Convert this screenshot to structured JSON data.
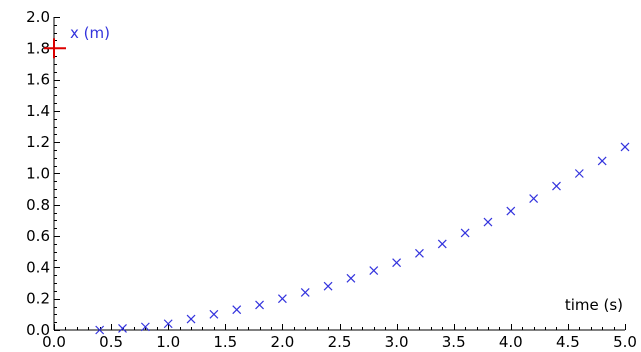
{
  "chart_data": {
    "type": "scatter",
    "title": "",
    "xlabel": "time (s)",
    "ylabel": "x (m)",
    "xlim": [
      0.0,
      5.0
    ],
    "ylim": [
      0.0,
      2.0
    ],
    "x_ticks": [
      0.0,
      0.5,
      1.0,
      1.5,
      2.0,
      2.5,
      3.0,
      3.5,
      4.0,
      4.5,
      5.0
    ],
    "x_tick_labels": [
      "0.0",
      "0.5",
      "1.0",
      "1.5",
      "2.0",
      "2.5",
      "3.0",
      "3.5",
      "4.0",
      "4.5",
      "5.0"
    ],
    "y_ticks": [
      0.0,
      0.2,
      0.4,
      0.6,
      0.8,
      1.0,
      1.2,
      1.4,
      1.6,
      1.8,
      2.0
    ],
    "y_tick_labels": [
      "0.0",
      "0.2",
      "0.4",
      "0.6",
      "0.8",
      "1.0",
      "1.2",
      "1.4",
      "1.6",
      "1.8",
      "2.0"
    ],
    "grid": false,
    "legend": "none",
    "colors": {
      "points": "#3333dd",
      "ylabel": "#3333dd",
      "xlabel": "#000000",
      "axis": "#000000",
      "marker": "#dd0000"
    },
    "series": [
      {
        "marker": "x",
        "x": [
          0.4,
          0.6,
          0.8,
          1.0,
          1.2,
          1.4,
          1.6,
          1.8,
          2.0,
          2.2,
          2.4,
          2.6,
          2.8,
          3.0,
          3.2,
          3.4,
          3.6,
          3.8,
          4.0,
          4.2,
          4.4,
          4.6,
          4.8,
          5.0
        ],
        "y": [
          0.0,
          0.01,
          0.02,
          0.04,
          0.07,
          0.1,
          0.13,
          0.16,
          0.2,
          0.24,
          0.28,
          0.33,
          0.38,
          0.43,
          0.49,
          0.55,
          0.62,
          0.69,
          0.76,
          0.84,
          0.92,
          1.0,
          1.08,
          1.17
        ]
      }
    ],
    "y_marker": {
      "y": 1.8,
      "color": "#dd0000"
    }
  }
}
